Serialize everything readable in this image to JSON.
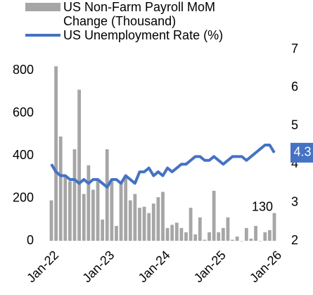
{
  "chart_data": {
    "type": "bar-line",
    "categories": [
      "Jan-22",
      null,
      null,
      null,
      null,
      null,
      null,
      null,
      null,
      null,
      null,
      null,
      "Jan-23",
      null,
      null,
      null,
      null,
      null,
      null,
      null,
      null,
      null,
      null,
      null,
      "Jan-24",
      null,
      null,
      null,
      null,
      null,
      null,
      null,
      null,
      null,
      null,
      null,
      "Jan-25",
      null,
      null,
      null,
      null,
      null,
      null,
      null,
      null,
      null,
      null,
      null,
      "Jan-26"
    ],
    "series": [
      {
        "name": "US Non-Farm Payroll MoM Change (Thousand)",
        "type": "bar",
        "color": "#a6a6a6",
        "values": [
          190,
          820,
          490,
          300,
          280,
          430,
          710,
          220,
          355,
          240,
          290,
          100,
          430,
          280,
          70,
          280,
          300,
          190,
          220,
          155,
          160,
          130,
          175,
          205,
          230,
          60,
          75,
          85,
          60,
          40,
          155,
          30,
          110,
          5,
          40,
          235,
          40,
          60,
          110,
          5,
          20,
          0,
          60,
          10,
          70,
          0,
          40,
          50,
          130
        ]
      },
      {
        "name": "US Unemployment Rate (%)",
        "type": "line",
        "axis": "y2",
        "color": "#4472c4",
        "values": [
          4.0,
          3.8,
          3.7,
          3.7,
          3.6,
          3.6,
          3.5,
          3.6,
          3.5,
          3.6,
          3.6,
          3.5,
          3.4,
          3.6,
          3.6,
          3.5,
          3.7,
          3.6,
          3.5,
          3.8,
          3.8,
          3.9,
          3.7,
          3.8,
          3.7,
          3.9,
          3.8,
          3.9,
          4.0,
          4.0,
          4.1,
          4.2,
          4.2,
          4.1,
          4.1,
          4.2,
          4.1,
          4.0,
          4.1,
          4.2,
          4.2,
          4.2,
          4.1,
          4.2,
          4.3,
          4.4,
          4.5,
          4.5,
          4.3
        ]
      }
    ],
    "ylim": [
      0,
      900
    ],
    "yticks": [
      0,
      200,
      400,
      600,
      800
    ],
    "y2lim": [
      2,
      7
    ],
    "y2ticks": [
      2,
      3,
      4,
      5,
      6,
      7
    ],
    "data_labels": [
      {
        "series": 0,
        "index": 48
      },
      {
        "series": 1,
        "index": 48
      }
    ],
    "legend": "top"
  }
}
